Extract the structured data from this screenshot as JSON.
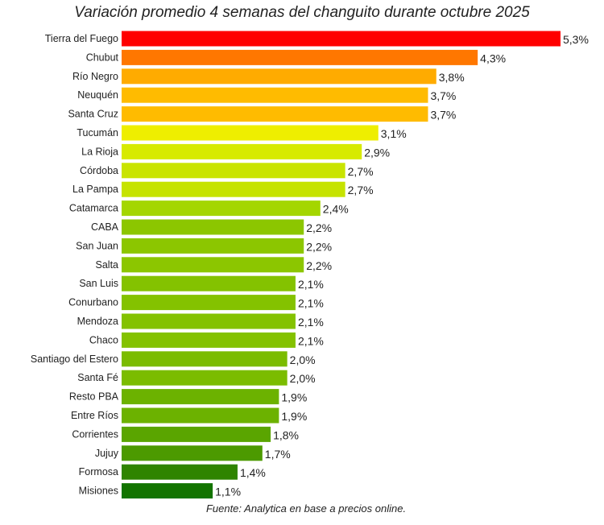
{
  "chart_data": {
    "type": "bar",
    "orientation": "horizontal",
    "title": "Variación promedio 4 semanas del changuito durante octubre 2025",
    "source": "Fuente: Analytica en base a precios online.",
    "categories": [
      "Tierra del Fuego",
      "Chubut",
      "Río Negro",
      "Neuquén",
      "Santa Cruz",
      "Tucumán",
      "La Rioja",
      "Córdoba",
      "La Pampa",
      "Catamarca",
      "CABA",
      "San Juan",
      "Salta",
      "San Luis",
      "Conurbano",
      "Mendoza",
      "Chaco",
      "Santiago del Estero",
      "Santa Fé",
      "Resto PBA",
      "Entre Ríos",
      "Corrientes",
      "Jujuy",
      "Formosa",
      "Misiones"
    ],
    "values": [
      5.3,
      4.3,
      3.8,
      3.7,
      3.7,
      3.1,
      2.9,
      2.7,
      2.7,
      2.4,
      2.2,
      2.2,
      2.2,
      2.1,
      2.1,
      2.1,
      2.1,
      2.0,
      2.0,
      1.9,
      1.9,
      1.8,
      1.7,
      1.4,
      1.1
    ],
    "value_labels": [
      "5,3%",
      "4,3%",
      "3,8%",
      "3,7%",
      "3,7%",
      "3,1%",
      "2,9%",
      "2,7%",
      "2,7%",
      "2,4%",
      "2,2%",
      "2,2%",
      "2,2%",
      "2,1%",
      "2,1%",
      "2,1%",
      "2,1%",
      "2,0%",
      "2,0%",
      "1,9%",
      "1,9%",
      "1,8%",
      "1,7%",
      "1,4%",
      "1,1%"
    ],
    "colors": [
      "#ff0000",
      "#ff7700",
      "#ffab00",
      "#ffbb00",
      "#ffbb00",
      "#eeee00",
      "#d7ea00",
      "#c9e400",
      "#c6e300",
      "#a4d600",
      "#8cc600",
      "#8cc600",
      "#8cc600",
      "#84c200",
      "#84c200",
      "#84c200",
      "#84c200",
      "#7bbc00",
      "#7bbc00",
      "#6cb200",
      "#6cb200",
      "#5aa500",
      "#4c9a00",
      "#2f8400",
      "#137400"
    ],
    "xlim": [
      0,
      5.3
    ],
    "grid": false,
    "legend": "none"
  }
}
